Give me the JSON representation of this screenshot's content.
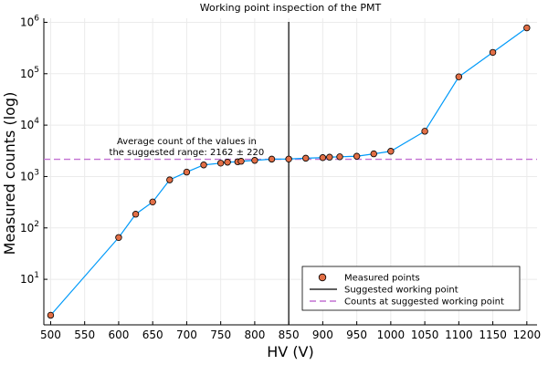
{
  "chart_data": {
    "type": "scatter",
    "title": "Working point inspection of the PMT",
    "xlabel": "HV (V)",
    "ylabel": "Measured counts (log)",
    "xlim": [
      490,
      1215
    ],
    "ylim": [
      1.3,
      1200000
    ],
    "yscale": "log",
    "grid": true,
    "xticks": [
      500,
      550,
      600,
      650,
      700,
      750,
      800,
      850,
      900,
      950,
      1000,
      1050,
      1100,
      1150,
      1200
    ],
    "yticks": [
      {
        "value": 10,
        "base": "10",
        "exp": "1"
      },
      {
        "value": 100,
        "base": "10",
        "exp": "2"
      },
      {
        "value": 1000,
        "base": "10",
        "exp": "3"
      },
      {
        "value": 10000,
        "base": "10",
        "exp": "4"
      },
      {
        "value": 100000,
        "base": "10",
        "exp": "5"
      },
      {
        "value": 1000000,
        "base": "10",
        "exp": "6"
      }
    ],
    "series": [
      {
        "name": "Measured points",
        "color": "#e26f46",
        "line_color": "#009af9",
        "x": [
          500,
          600,
          625,
          650,
          675,
          700,
          725,
          750,
          760,
          775,
          780,
          800,
          825,
          850,
          875,
          900,
          910,
          925,
          950,
          975,
          1000,
          1050,
          1100,
          1150,
          1200
        ],
        "y": [
          2,
          65,
          185,
          320,
          860,
          1220,
          1680,
          1820,
          1900,
          1930,
          1980,
          2060,
          2180,
          2190,
          2270,
          2330,
          2380,
          2420,
          2480,
          2760,
          3100,
          7600,
          87000,
          260000,
          780000
        ]
      }
    ],
    "vline": {
      "name": "Suggested working point",
      "x": 850,
      "color": "#000000"
    },
    "hline": {
      "name": "Counts at suggested working point",
      "y": 2162,
      "color": "#c271d2"
    },
    "annotation": {
      "lines": [
        "Average count of the values in",
        "the suggested range: 2162 ± 220"
      ],
      "x": 700,
      "y": 3800
    },
    "legend": {
      "placement": "bottom-right",
      "entries": [
        "Measured points",
        "Suggested working point",
        "Counts at suggested working point"
      ]
    }
  }
}
